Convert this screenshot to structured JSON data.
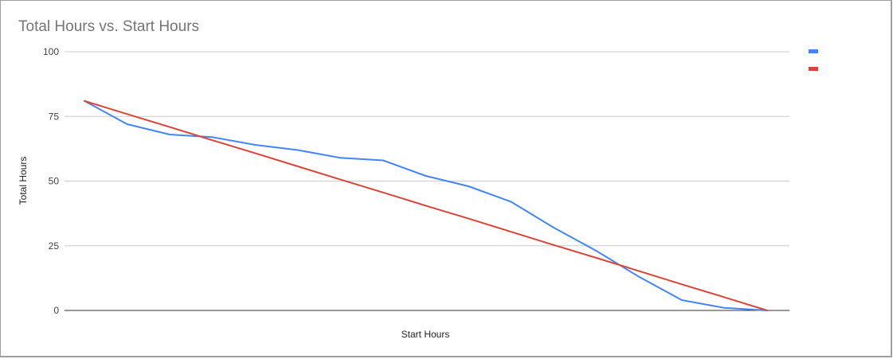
{
  "chart_data": {
    "type": "line",
    "title": "Total Hours vs. Start Hours",
    "xlabel": "Start Hours",
    "ylabel": "Total Hours",
    "ylim": [
      0,
      100
    ],
    "yticks": [
      "0",
      "25",
      "50",
      "75",
      "100"
    ],
    "grid": true,
    "legend": "top-right",
    "series": [
      {
        "color": "#4285f4",
        "values": [
          81,
          72,
          68,
          67,
          64,
          62,
          59,
          58,
          52,
          48,
          42,
          32,
          23,
          13,
          4,
          1,
          0
        ]
      },
      {
        "color": "#db4437",
        "values": [
          81,
          75.9,
          70.9,
          65.8,
          60.8,
          55.7,
          50.6,
          45.6,
          40.5,
          35.5,
          30.4,
          25.3,
          20.3,
          15.2,
          10.1,
          5.1,
          0
        ]
      }
    ]
  }
}
